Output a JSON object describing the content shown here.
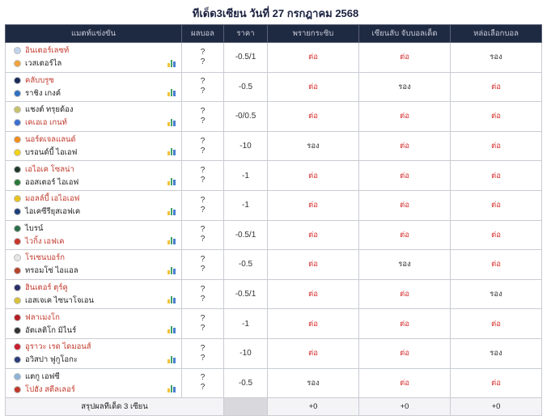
{
  "title": "ทีเด็ด3เซียน วันที่ 27 กรกฎาคม 2568",
  "headers": {
    "match": "แมตท์แข่งขัน",
    "score": "ผลบอล",
    "price": "ราคา",
    "tipster1": "พรายกระซิบ",
    "tipster2": "เซียนลับ จับบอลเด็ด",
    "tipster3": "หล่อเลือกบอล"
  },
  "matches": [
    {
      "home": "อินเตอร์เลซท์",
      "away": "เวสเตอร์ไล",
      "home_fav": true,
      "away_fav": false,
      "home_color": "#c0d4ee",
      "away_color": "#f2a33a",
      "score1": "?",
      "score2": "?",
      "price": "-0.5/1",
      "t1": "ต่อ",
      "t2": "ต่อ",
      "t3": "รอง"
    },
    {
      "home": "คลับบรูซ",
      "away": "ราชิง เกงค์",
      "home_fav": true,
      "away_fav": false,
      "home_color": "#1b2a5a",
      "away_color": "#2f6fbf",
      "score1": "?",
      "score2": "?",
      "price": "-0.5",
      "t1": "ต่อ",
      "t2": "รอง",
      "t3": "ต่อ"
    },
    {
      "home": "แชงต์ ทรุยด้อง",
      "away": "เคเอเอ เกนท์",
      "home_fav": false,
      "away_fav": true,
      "home_color": "#c7c36a",
      "away_color": "#3b6fd1",
      "score1": "?",
      "score2": "?",
      "price": "-0/0.5",
      "t1": "ต่อ",
      "t2": "ต่อ",
      "t3": "ต่อ"
    },
    {
      "home": "นอร์ดเจลแลนด์",
      "away": "บรอนด์บี้ ไอเอฟ",
      "home_fav": true,
      "away_fav": false,
      "home_color": "#f28c1a",
      "away_color": "#f3d21a",
      "score1": "?",
      "score2": "?",
      "price": "-10",
      "t1": "รอง",
      "t2": "ต่อ",
      "t3": "ต่อ"
    },
    {
      "home": "เอไอเค โซลน่า",
      "away": "ออสเตอร์ ไอเอฟ",
      "home_fav": true,
      "away_fav": false,
      "home_color": "#1f3a2a",
      "away_color": "#2b7a3a",
      "score1": "?",
      "score2": "?",
      "price": "-1",
      "t1": "ต่อ",
      "t2": "ต่อ",
      "t3": "ต่อ"
    },
    {
      "home": "มอลล์บี้ เอไอเอฟ",
      "away": "ไอเคซีรียุสเอฟเค",
      "home_fav": true,
      "away_fav": false,
      "home_color": "#e8c21a",
      "away_color": "#1f3f7a",
      "score1": "?",
      "score2": "?",
      "price": "-1",
      "t1": "ต่อ",
      "t2": "ต่อ",
      "t3": "ต่อ"
    },
    {
      "home": "ไบรน์",
      "away": "ไวกิ้ง เอฟเค",
      "home_fav": false,
      "away_fav": true,
      "home_color": "#2b6e4a",
      "away_color": "#c7352e",
      "score1": "?",
      "score2": "?",
      "price": "-0.5/1",
      "t1": "ต่อ",
      "t2": "ต่อ",
      "t3": "ต่อ"
    },
    {
      "home": "โรเซนบอร์ก",
      "away": "ทรอมโซ่ ไอแอล",
      "home_fav": true,
      "away_fav": false,
      "home_color": "#e6e6e6",
      "away_color": "#b8442a",
      "score1": "?",
      "score2": "?",
      "price": "-0.5",
      "t1": "ต่อ",
      "t2": "รอง",
      "t3": "ต่อ"
    },
    {
      "home": "ฮินเตอร์ ตุร์คู",
      "away": "เอสเจเค ไซนาโจเอน",
      "home_fav": true,
      "away_fav": false,
      "home_color": "#2a2f6a",
      "away_color": "#d9c23a",
      "score1": "?",
      "score2": "?",
      "price": "-0.5/1",
      "t1": "ต่อ",
      "t2": "ต่อ",
      "t3": "รอง"
    },
    {
      "home": "ฟลาเมงโก",
      "away": "อัตเลติโก มิไนร์",
      "home_fav": true,
      "away_fav": false,
      "home_color": "#b51f24",
      "away_color": "#333333",
      "score1": "?",
      "score2": "?",
      "price": "-1",
      "t1": "ต่อ",
      "t2": "ต่อ",
      "t3": "ต่อ"
    },
    {
      "home": "อูราวะ เรด ไดมอนส์",
      "away": "อวิสปา ฟูกูโอกะ",
      "home_fav": true,
      "away_fav": false,
      "home_color": "#c81e2e",
      "away_color": "#2c3e7a",
      "score1": "?",
      "score2": "?",
      "price": "-10",
      "t1": "ต่อ",
      "t2": "ต่อ",
      "t3": "รอง"
    },
    {
      "home": "แตกู เอฟซี",
      "away": "โปฮัง สตีลเลอร์",
      "home_fav": false,
      "away_fav": true,
      "home_color": "#8fb3d9",
      "away_color": "#c0392b",
      "score1": "?",
      "score2": "?",
      "price": "-0.5",
      "t1": "รอง",
      "t2": "ต่อ",
      "t3": "ต่อ"
    }
  ],
  "summary": {
    "label": "สรุปผลทีเด็ด 3 เซียน",
    "t1": "+0",
    "t2": "+0",
    "t3": "+0"
  },
  "colors": {
    "header_bg": "#1e2942",
    "fav_text": "#c0392b",
    "pick_red": "#d63030",
    "stats_bars": [
      "#f0c23a",
      "#3ea06a",
      "#4a7fd0"
    ]
  }
}
